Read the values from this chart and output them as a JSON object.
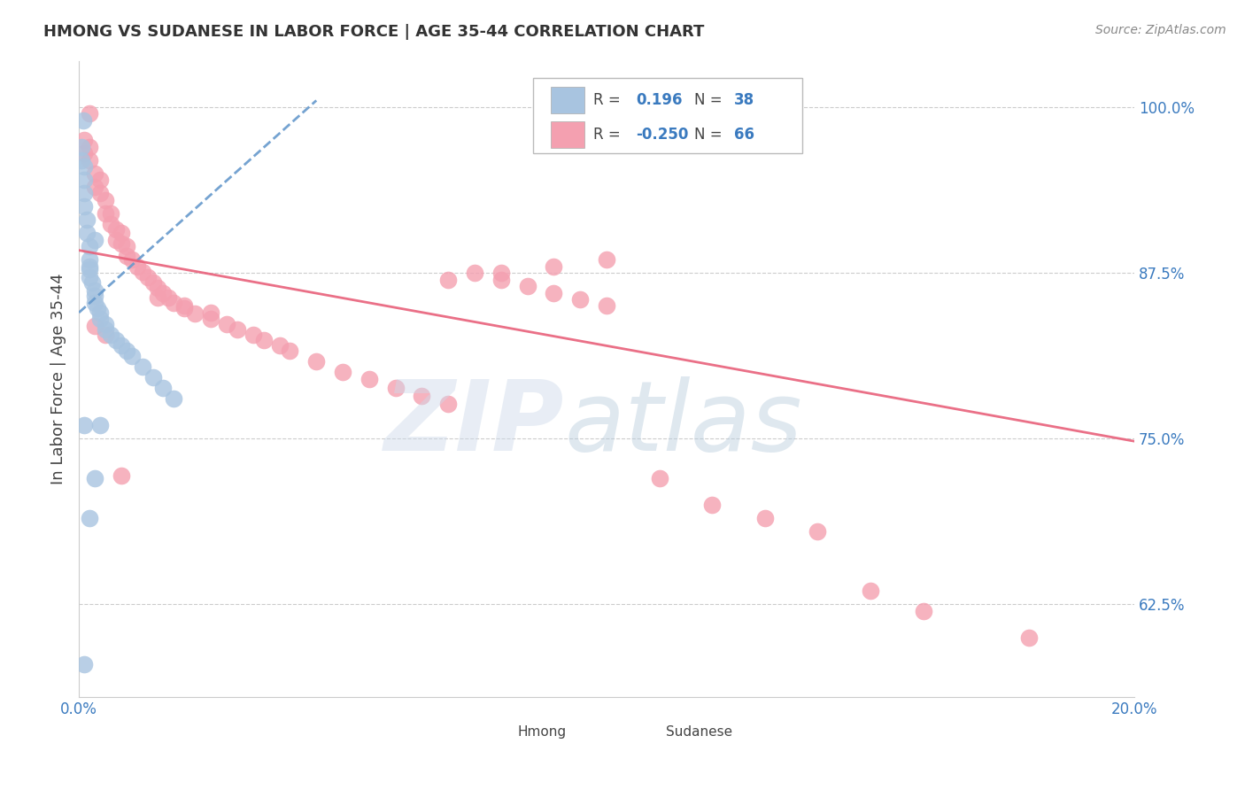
{
  "title": "HMONG VS SUDANESE IN LABOR FORCE | AGE 35-44 CORRELATION CHART",
  "source": "Source: ZipAtlas.com",
  "ylabel_label": "In Labor Force | Age 35-44",
  "x_min": 0.0,
  "x_max": 0.2,
  "y_min": 0.555,
  "y_max": 1.035,
  "y_ticks_right": [
    1.0,
    0.875,
    0.75,
    0.625
  ],
  "y_tick_labels_right": [
    "100.0%",
    "87.5%",
    "75.0%",
    "62.5%"
  ],
  "hmong_R": 0.196,
  "hmong_N": 38,
  "sudanese_R": -0.25,
  "sudanese_N": 66,
  "hmong_color": "#a8c4e0",
  "sudanese_color": "#f4a0b0",
  "trend_hmong_color": "#6699cc",
  "trend_sudanese_color": "#e8607a",
  "hmong_x": [
    0.0005,
    0.0005,
    0.001,
    0.001,
    0.001,
    0.001,
    0.0015,
    0.0015,
    0.002,
    0.002,
    0.002,
    0.002,
    0.0025,
    0.003,
    0.003,
    0.003,
    0.0035,
    0.004,
    0.004,
    0.005,
    0.005,
    0.006,
    0.007,
    0.008,
    0.009,
    0.01,
    0.012,
    0.014,
    0.016,
    0.018,
    0.001,
    0.002,
    0.003,
    0.004,
    0.001,
    0.002,
    0.003,
    0.0008
  ],
  "hmong_y": [
    0.97,
    0.96,
    0.955,
    0.945,
    0.935,
    0.925,
    0.915,
    0.905,
    0.895,
    0.885,
    0.878,
    0.872,
    0.868,
    0.862,
    0.858,
    0.852,
    0.848,
    0.845,
    0.84,
    0.836,
    0.832,
    0.828,
    0.824,
    0.82,
    0.816,
    0.812,
    0.804,
    0.796,
    0.788,
    0.78,
    0.76,
    0.88,
    0.9,
    0.76,
    0.58,
    0.69,
    0.72,
    0.99
  ],
  "sudanese_x": [
    0.001,
    0.001,
    0.002,
    0.002,
    0.003,
    0.003,
    0.004,
    0.004,
    0.005,
    0.005,
    0.006,
    0.006,
    0.007,
    0.007,
    0.008,
    0.008,
    0.009,
    0.009,
    0.01,
    0.011,
    0.012,
    0.013,
    0.014,
    0.015,
    0.016,
    0.017,
    0.018,
    0.02,
    0.022,
    0.025,
    0.028,
    0.03,
    0.033,
    0.035,
    0.038,
    0.04,
    0.045,
    0.05,
    0.055,
    0.06,
    0.065,
    0.07,
    0.075,
    0.08,
    0.085,
    0.09,
    0.095,
    0.1,
    0.11,
    0.12,
    0.13,
    0.14,
    0.003,
    0.005,
    0.008,
    0.15,
    0.16,
    0.18,
    0.002,
    0.07,
    0.08,
    0.09,
    0.1,
    0.015,
    0.02,
    0.025
  ],
  "sudanese_y": [
    0.975,
    0.965,
    0.97,
    0.96,
    0.95,
    0.94,
    0.945,
    0.935,
    0.93,
    0.92,
    0.92,
    0.912,
    0.908,
    0.9,
    0.905,
    0.897,
    0.895,
    0.888,
    0.885,
    0.88,
    0.876,
    0.872,
    0.868,
    0.864,
    0.86,
    0.856,
    0.852,
    0.848,
    0.844,
    0.84,
    0.836,
    0.832,
    0.828,
    0.824,
    0.82,
    0.816,
    0.808,
    0.8,
    0.795,
    0.788,
    0.782,
    0.776,
    0.875,
    0.87,
    0.865,
    0.86,
    0.855,
    0.85,
    0.72,
    0.7,
    0.69,
    0.68,
    0.835,
    0.828,
    0.722,
    0.635,
    0.62,
    0.6,
    0.995,
    0.87,
    0.875,
    0.88,
    0.885,
    0.856,
    0.85,
    0.845
  ]
}
